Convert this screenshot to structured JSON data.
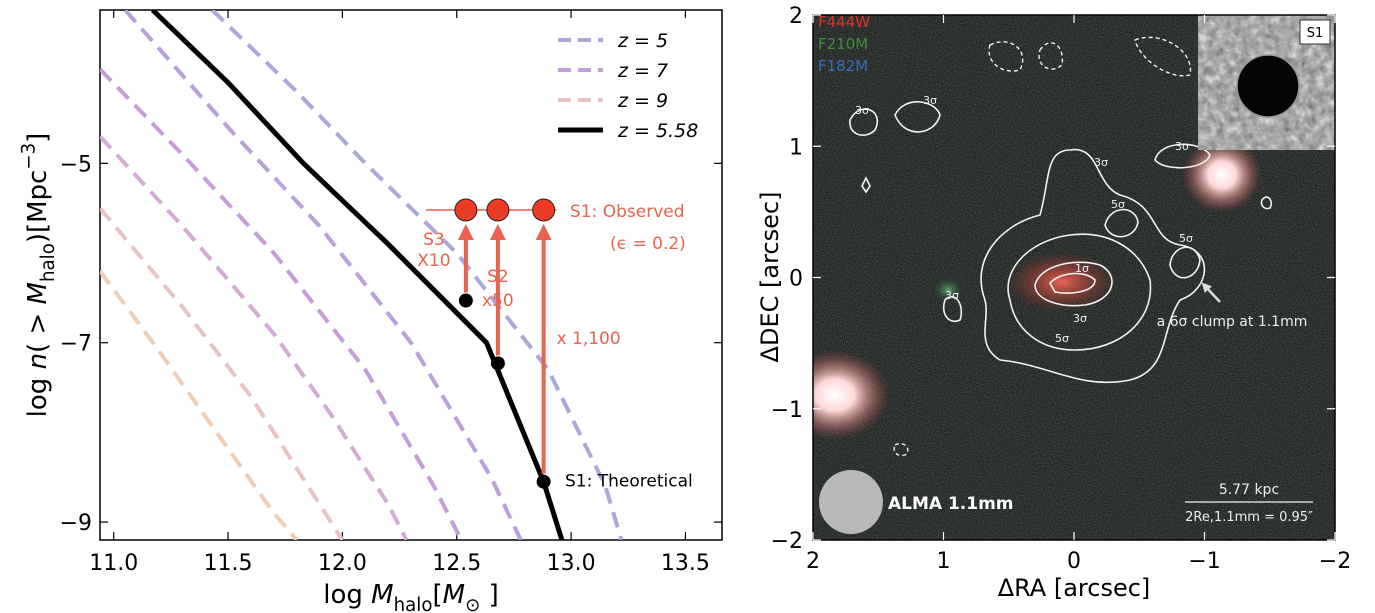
{
  "chart_data": [
    {
      "type": "line",
      "xlabel_parts": [
        {
          "text": "log ",
          "style": "normal"
        },
        {
          "text": "M",
          "style": "italic"
        },
        {
          "text": "halo",
          "style": "sub"
        },
        {
          "text": "[",
          "style": "normal"
        },
        {
          "text": "M",
          "style": "italic"
        },
        {
          "text": "⊙",
          "style": "sub"
        },
        {
          "text": " ]",
          "style": "normal"
        }
      ],
      "ylabel_parts": [
        {
          "text": "log ",
          "style": "normal"
        },
        {
          "text": "n",
          "style": "italic"
        },
        {
          "text": "( > ",
          "style": "normal"
        },
        {
          "text": "M",
          "style": "italic"
        },
        {
          "text": "halo",
          "style": "sub"
        },
        {
          "text": ")[Mpc",
          "style": "normal"
        },
        {
          "text": "−3",
          "style": "sup"
        },
        {
          "text": "]",
          "style": "normal"
        }
      ],
      "xlim": [
        10.94,
        13.66
      ],
      "ylim": [
        -9.2,
        -3.29
      ],
      "xticks": [
        {
          "value": 11.0,
          "label": "11.0"
        },
        {
          "value": 11.5,
          "label": "11.5"
        },
        {
          "value": 12.0,
          "label": "12.0"
        },
        {
          "value": 12.5,
          "label": "12.5"
        },
        {
          "value": 13.0,
          "label": "13.0"
        },
        {
          "value": 13.5,
          "label": "13.5"
        }
      ],
      "yticks": [
        {
          "value": -5,
          "label": "−5"
        },
        {
          "value": -7,
          "label": "−7"
        },
        {
          "value": -9,
          "label": "−9"
        }
      ],
      "legend": "upper right",
      "series": [
        {
          "name": "z = 5",
          "color": "#a9a9d9",
          "dashed": true,
          "x": [
            11.43,
            11.8,
            12.1,
            12.5,
            12.9,
            13.15,
            13.22
          ],
          "values": [
            -3.29,
            -4.2,
            -5.0,
            -6.0,
            -7.3,
            -8.6,
            -9.2
          ]
        },
        {
          "color": "#b9a0dd",
          "dashed": true,
          "x": [
            11.05,
            11.5,
            11.9,
            12.3,
            12.65,
            12.78
          ],
          "values": [
            -3.29,
            -4.6,
            -5.7,
            -7.0,
            -8.5,
            -9.2
          ]
        },
        {
          "name": "z = 7",
          "color": "#c59ed9",
          "dashed": true,
          "x": [
            10.94,
            11.3,
            11.7,
            12.1,
            12.4,
            12.52
          ],
          "values": [
            -3.95,
            -4.9,
            -6.0,
            -7.3,
            -8.6,
            -9.2
          ]
        },
        {
          "color": "#d3acd6",
          "dashed": true,
          "x": [
            10.94,
            11.3,
            11.7,
            11.95,
            12.2,
            12.28
          ],
          "values": [
            -4.7,
            -5.7,
            -6.9,
            -7.8,
            -8.8,
            -9.2
          ]
        },
        {
          "name": "z = 9",
          "color": "#e9c2c3",
          "dashed": true,
          "x": [
            10.94,
            11.3,
            11.6,
            11.85,
            12.0
          ],
          "values": [
            -5.5,
            -6.6,
            -7.6,
            -8.6,
            -9.2
          ]
        },
        {
          "color": "#f0cdb5",
          "dashed": true,
          "x": [
            10.94,
            11.2,
            11.45,
            11.7,
            11.8
          ],
          "values": [
            -6.2,
            -7.1,
            -8.0,
            -8.9,
            -9.2
          ]
        },
        {
          "name": "z = 5.58",
          "color": "#000000",
          "dashed": false,
          "x": [
            11.17,
            11.5,
            11.83,
            12.2,
            12.63,
            12.88,
            12.96
          ],
          "values": [
            -3.29,
            -4.1,
            -5.0,
            -5.9,
            -7.0,
            -8.55,
            -9.2
          ]
        }
      ],
      "marker_color": "#e8624d",
      "sources": [
        {
          "label": "S3",
          "factor": "X10",
          "x": 12.54,
          "observed": -5.52,
          "theoretical": -6.53
        },
        {
          "label": "S2",
          "factor": "x50",
          "x": 12.68,
          "observed": -5.52,
          "theoretical": -7.23
        },
        {
          "factor": "x 1,100",
          "x": 12.88,
          "observed": -5.52,
          "theoretical": -8.55
        }
      ],
      "observed_label": "S1: Observed",
      "epsilon_label": "(ϵ = 0.2)",
      "theoretical_label": "S1: Theoretical"
    },
    {
      "type": "image",
      "xlabel": "ΔRA [arcsec]",
      "ylabel": "ΔDEC [arcsec]",
      "xlim": [
        2,
        -2
      ],
      "ylim": [
        -2,
        2
      ],
      "xticks": [
        2,
        1,
        0,
        {
          "value": -1,
          "label": "−1"
        },
        {
          "value": -2,
          "label": "−2"
        }
      ],
      "yticks": [
        2,
        1,
        0,
        {
          "value": -1,
          "label": "−1"
        },
        {
          "value": -2,
          "label": "−2"
        }
      ],
      "filters": [
        {
          "name": "F444W",
          "color": "#d8342c"
        },
        {
          "name": "F210M",
          "color": "#3f8c3a"
        },
        {
          "name": "F182M",
          "color": "#3c6bb5"
        }
      ],
      "inset_label": "S1",
      "beam_label": "ALMA 1.1mm",
      "scale_label": "5.77 kpc",
      "size_label": "2Re,1.1mm = 0.95″",
      "annotation": "a 6σ clump at 1.1mm",
      "contour_labels": [
        "3σ",
        "3σ",
        "3σ",
        "3σ",
        "5σ",
        "5σ",
        "1σ",
        "3σ",
        "5σ",
        "3σ"
      ]
    }
  ]
}
